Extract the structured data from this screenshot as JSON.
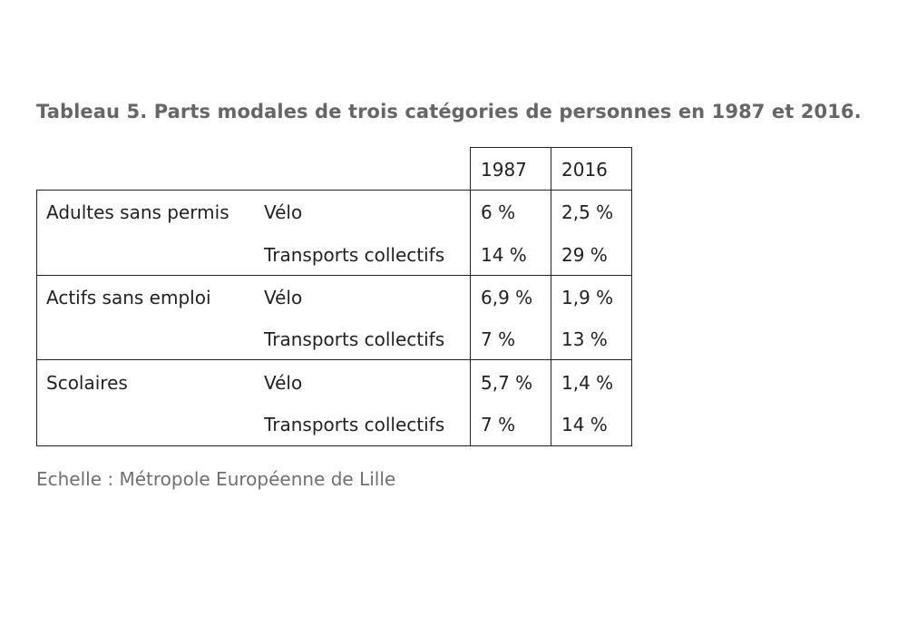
{
  "title": "Tableau 5. Parts modales de trois catégories de personnes en 1987 et 2016.",
  "caption": "Echelle : Métropole Européenne de Lille",
  "table": {
    "years": [
      "1987",
      "2016"
    ],
    "groups": [
      {
        "category": "Adultes sans permis",
        "rows": [
          {
            "mode": "Vélo",
            "v1987": "6 %",
            "v2016": "2,5 %"
          },
          {
            "mode": "Transports collectifs",
            "v1987": "14 %",
            "v2016": "29 %"
          }
        ]
      },
      {
        "category": "Actifs sans emploi",
        "rows": [
          {
            "mode": "Vélo",
            "v1987": "6,9 %",
            "v2016": "1,9 %"
          },
          {
            "mode": "Transports collectifs",
            "v1987": "7 %",
            "v2016": "13 %"
          }
        ]
      },
      {
        "category": "Scolaires",
        "rows": [
          {
            "mode": "Vélo",
            "v1987": "5,7 %",
            "v2016": "1,4 %"
          },
          {
            "mode": "Transports collectifs",
            "v1987": "7 %",
            "v2016": "14 %"
          }
        ]
      }
    ]
  }
}
